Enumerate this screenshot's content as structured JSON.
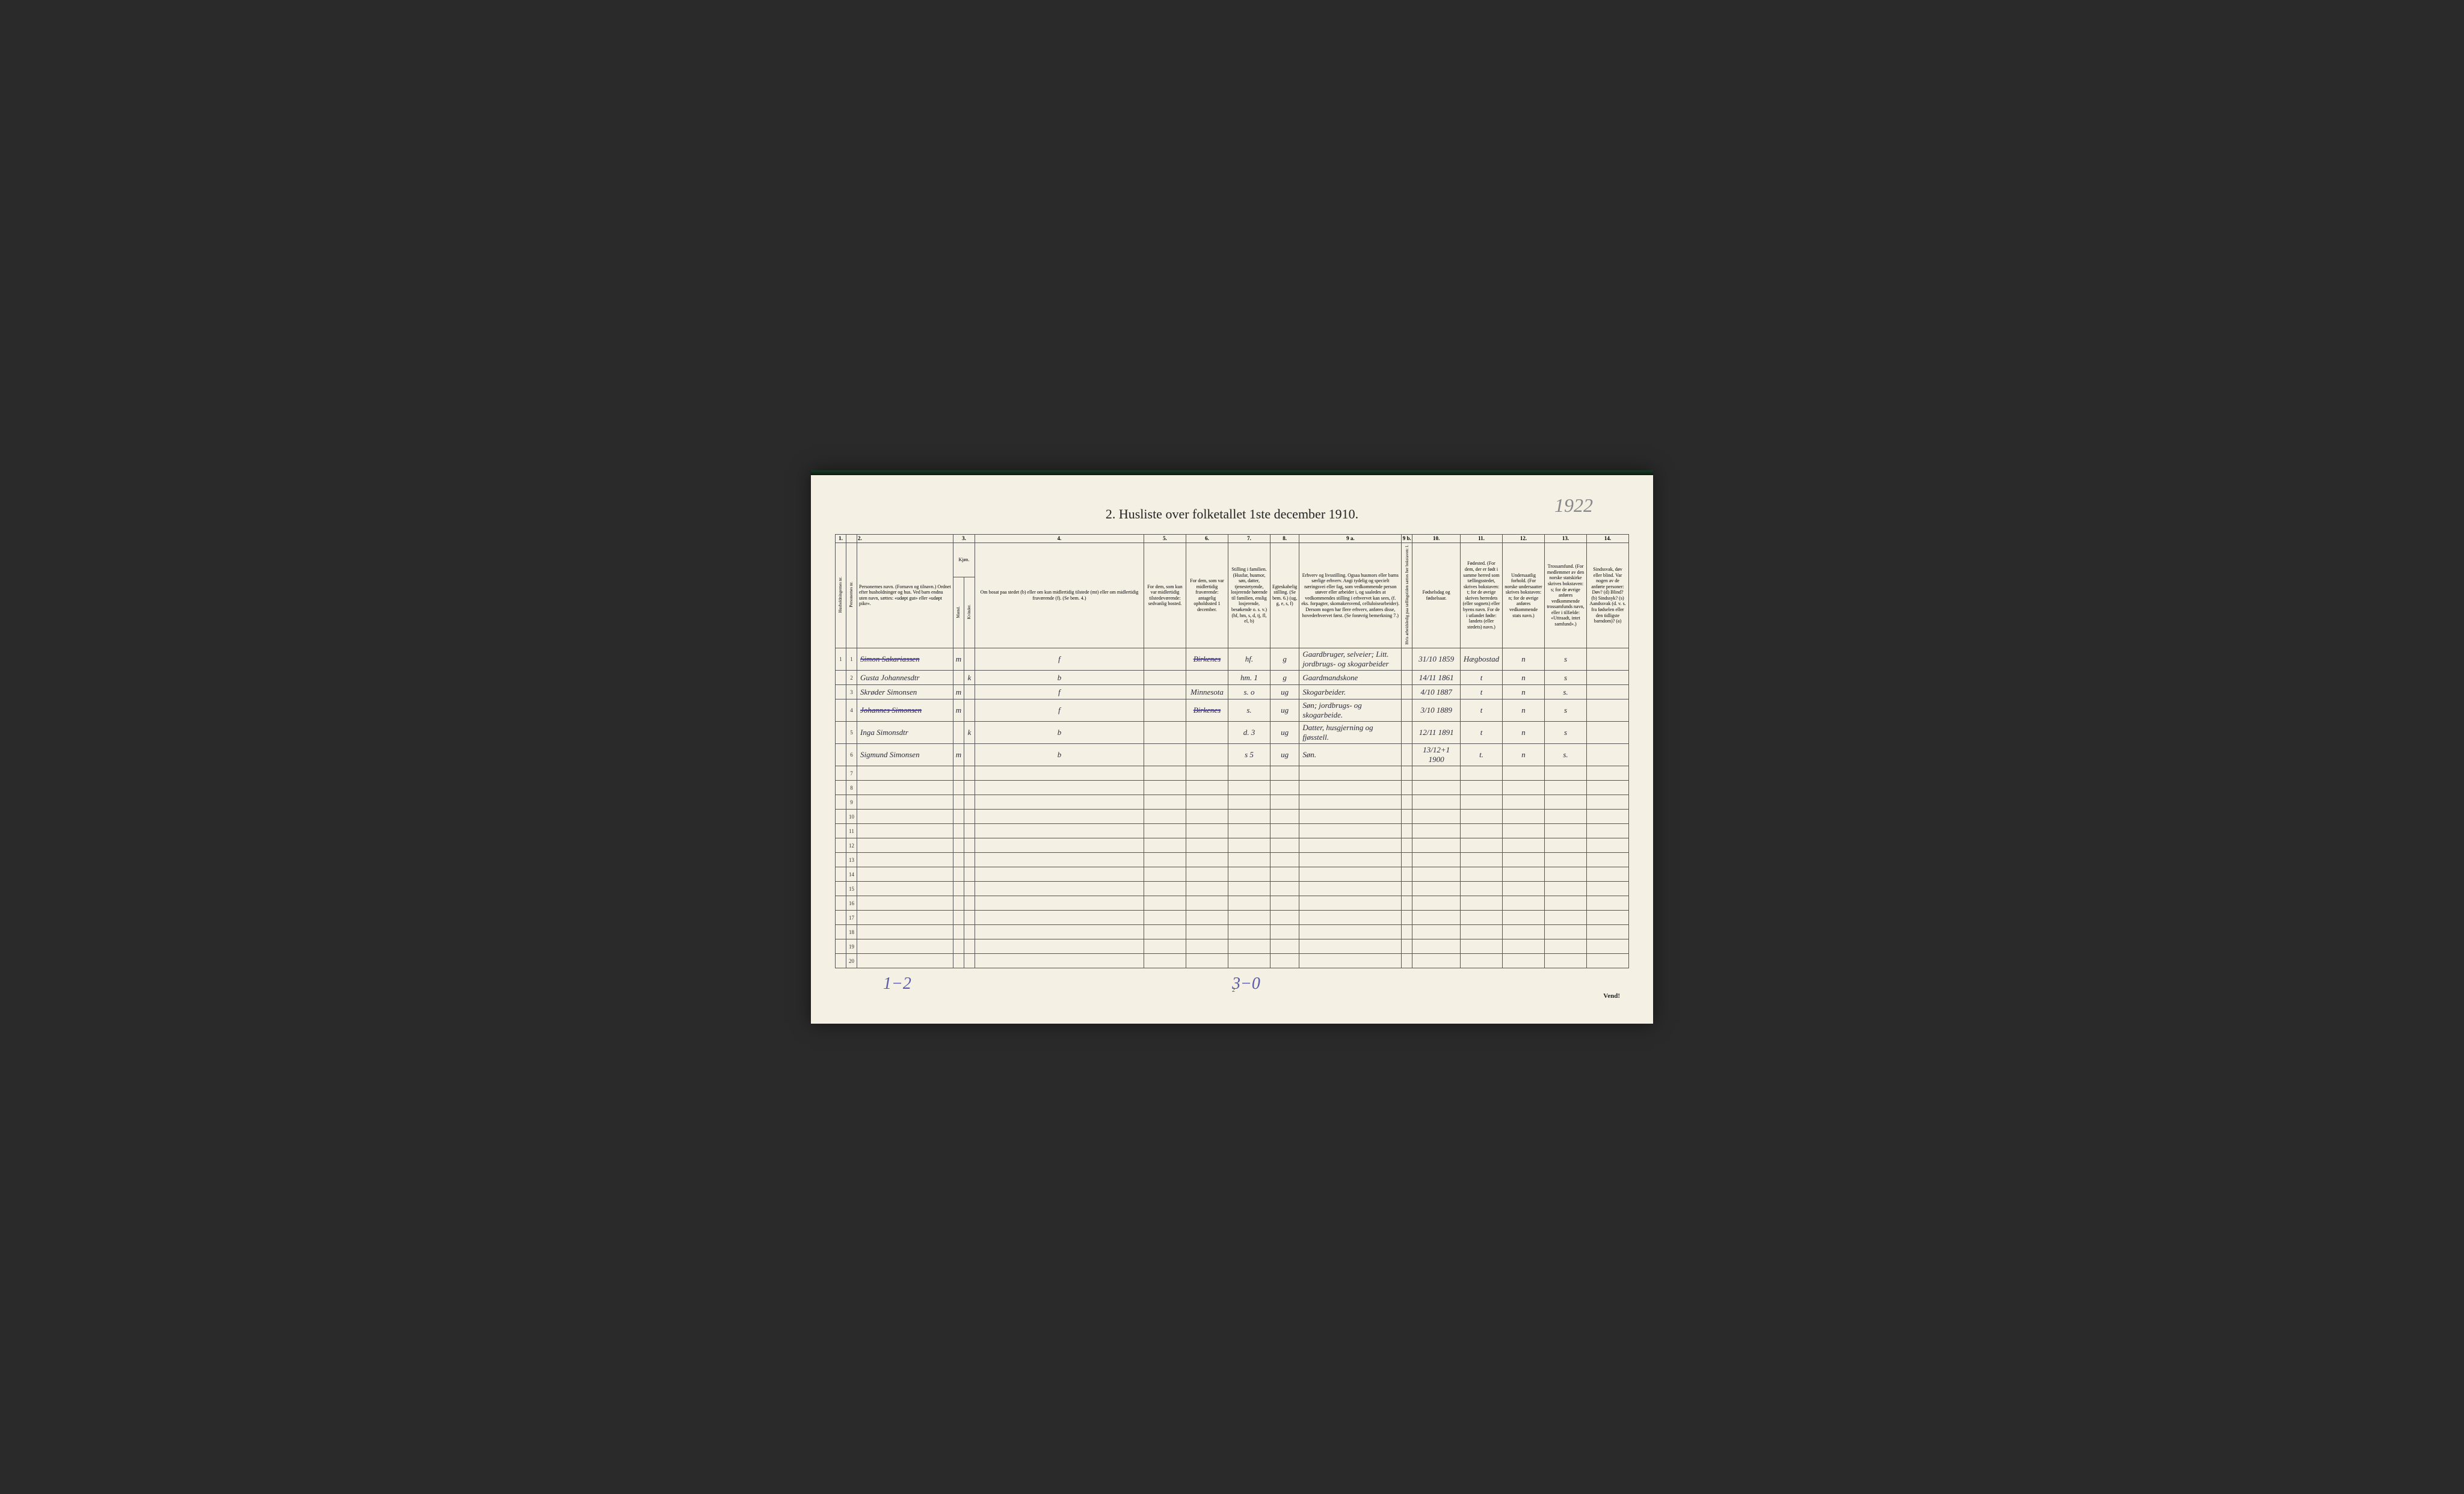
{
  "handwritten_top": "1922",
  "title": "2. Husliste over folketallet 1ste december 1910.",
  "col_numbers": [
    "1.",
    "",
    "2.",
    "3.",
    "",
    "4.",
    "5.",
    "6.",
    "7.",
    "8.",
    "9 a.",
    "9 b.",
    "10.",
    "11.",
    "12.",
    "13.",
    "14."
  ],
  "headers": {
    "c1": "Husholdningernes nr.",
    "c1b": "Personernes nr.",
    "c2": "Personernes navn.\n(Fornavn og tilnavn.)\nOrdnet efter husholdninger og hus.\nVed barn endnu uten navn, sættes: «udøpt gut» eller «udøpt pike».",
    "c3": "Kjøn.",
    "c3m": "Mænd.",
    "c3k": "Kvinder.",
    "c4": "Om bosat paa stedet (b) eller om kun midlertidig tilstede (mt) eller om midlertidig fraværende (f). (Se bem. 4.)",
    "c5": "For dem, som kun var midlertidig tilstedeværende:\nsedvanlig bosted.",
    "c6": "For dem, som var midlertidig fraværende:\nantagelig opholdssted 1 december.",
    "c7": "Stilling i familien.\n(Husfar, husmor, søn, datter, tjenestetyende, losjerende hørende til familien, enslig losjerende, besøkende o. s. v.)\n(hf, hm, s, d, tj, fl, el, b)",
    "c8": "Egteskabelig stilling.\n(Se bem. 6.)\n(ug, g, e, s, f)",
    "c9a": "Erhverv og livsstilling.\nOgsaa husmors eller barns særlige erhverv. Angi tydelig og specielt næringsvei eller fag, som vedkommende person utøver eller arbeider i, og saaledes at vedkommendes stilling i erhvervet kan sees, (f. eks. forpagter, skomakersvend, celluloisearbeider). Dersom nogen har flere erhverv, anføres disse, hovederhvervet først.\n(Se forøvrig bemerkning 7.)",
    "c9b": "Hvis arbeidsledig paa tællingstiden sættes her bokstaven: l.",
    "c10": "Fødselsdag og fødselsaar.",
    "c11": "Fødested.\n(For dem, der er født i samme herred som tællingsstedet, skrives bokstaven: t; for de øvrige skrives herredets (eller sognets) eller byens navn. For de i utlandet fødte: landets (eller stedets) navn.)",
    "c12": "Undersaatlig forhold.\n(For norske undersaatter skrives bokstaven: n; for de øvrige anføres vedkommende stats navn.)",
    "c13": "Trossamfund.\n(For medlemmer av den norske statskirke skrives bokstaven: s; for de øvrige anføres vedkommende trossamfunds navn, eller i tilfælde: «Uttraadt, intet samfund».)",
    "c14": "Sindssvak, døv eller blind.\nVar nogen av de anførte personer:\nDøv? (d)\nBlind? (b)\nSindssyk? (s)\nAandssvak (d. v. s. fra fødselen eller den tidligste barndom)? (a)"
  },
  "rows": [
    {
      "n": "1",
      "p": "1",
      "name": "Simon Sakariassen",
      "m": "m",
      "k": "",
      "bf": "f",
      "c5": "",
      "c6": "Birkenes",
      "c7": "hf.",
      "c8": "g",
      "c9": "Gaardbruger, selveier; Litt. jordbrugs- og skogarbeider",
      "c10": "31/10 1859",
      "c11": "Hægbostad",
      "c12": "n",
      "c13": "s",
      "strike": true
    },
    {
      "n": "",
      "p": "2",
      "name": "Gusta Johannesdtr",
      "m": "",
      "k": "k",
      "bf": "b",
      "c5": "",
      "c6": "",
      "c7": "hm.   1",
      "c8": "g",
      "c9": "Gaardmandskone",
      "c10": "14/11 1861",
      "c11": "t",
      "c12": "n",
      "c13": "s",
      "strike": false
    },
    {
      "n": "",
      "p": "3",
      "name": "Skrøder Simonsen",
      "m": "m",
      "k": "",
      "bf": "f",
      "c5": "",
      "c6": "Minnesota",
      "c7": "s.   o",
      "c8": "ug",
      "c9": "Skogarbeider.",
      "c10": "4/10 1887",
      "c11": "t",
      "c12": "n",
      "c13": "s.",
      "strike": false
    },
    {
      "n": "",
      "p": "4",
      "name": "Johannes Simonsen",
      "m": "m",
      "k": "",
      "bf": "f",
      "c5": "",
      "c6": "Birkenes",
      "c7": "s.",
      "c8": "ug",
      "c9": "Søn; jordbrugs- og skogarbeide.",
      "c10": "3/10 1889",
      "c11": "t",
      "c12": "n",
      "c13": "s",
      "strike": true
    },
    {
      "n": "",
      "p": "5",
      "name": "Inga Simonsdtr",
      "m": "",
      "k": "k",
      "bf": "b",
      "c5": "",
      "c6": "",
      "c7": "d.   3",
      "c8": "ug",
      "c9": "Datter, husgjerning og fjøsstell.",
      "c10": "12/11 1891",
      "c11": "t",
      "c12": "n",
      "c13": "s",
      "strike": false
    },
    {
      "n": "",
      "p": "6",
      "name": "Sigmund Simonsen",
      "m": "m",
      "k": "",
      "bf": "b",
      "c5": "",
      "c6": "",
      "c7": "s   5",
      "c8": "ug",
      "c9": "Søn.",
      "c10": "13/12+1 1900",
      "c11": "t.",
      "c12": "n",
      "c13": "s.",
      "strike": false
    }
  ],
  "empty_rows": [
    "7",
    "8",
    "9",
    "10",
    "11",
    "12",
    "13",
    "14",
    "15",
    "16",
    "17",
    "18",
    "19",
    "20"
  ],
  "footer": {
    "note1": "1−2",
    "note2": "3−0",
    "page": "2",
    "vend": "Vend!"
  },
  "colors": {
    "paper": "#f4f0e4",
    "ink": "#222",
    "hand": "#2a2a3a",
    "pencil": "#5a5aaa",
    "border": "#555"
  }
}
